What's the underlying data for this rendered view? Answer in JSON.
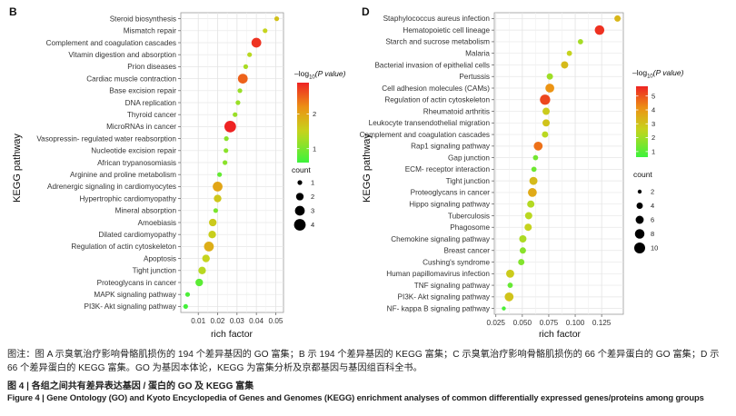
{
  "captions": {
    "note_cn": "图注：图 A 示臭氧治疗影响骨骼肌损伤的 194 个差异基因的 GO 富集；B 示 194 个差异基因的 KEGG 富集；C 示臭氧治疗影响骨骼肌损伤的 66 个差异蛋白的 GO 富集；D 示 66 个差异蛋白的 KEGG 富集。GO 为基因本体论，KEGG 为富集分析及京都基因与基因组百科全书。",
    "title_cn": "图 4 | 各组之间共有差异表达基因 / 蛋白的 GO 及 KEGG 富集",
    "title_en": "Figure 4 | Gene Ontology (GO) and Kyoto Encyclopedia of Genes and Genomes (KEGG) enrichment analyses of common differentially expressed genes/proteins among groups"
  },
  "chart_data": [
    {
      "type": "scatter",
      "panel": "B",
      "xlabel": "rich factor",
      "ylabel": "KEGG pathway",
      "xticks": [
        0.01,
        0.02,
        0.03,
        0.04,
        0.05
      ],
      "xticklabels": [
        "0.01",
        "0.02",
        "0.03",
        "0.04",
        "0.05"
      ],
      "xlim": [
        0.001,
        0.054
      ],
      "grid": true,
      "color_legend": {
        "title_prefix": "–log",
        "title_sub": "10",
        "title_suffix": "(P value)",
        "ticks": [
          1,
          2
        ],
        "range": [
          0.6,
          2.9
        ],
        "low_color": "#3cf23c",
        "high_color": "#ee2323"
      },
      "size_legend": {
        "title": "count",
        "values": [
          1,
          2,
          3,
          4
        ]
      },
      "categories": [
        "Steroid biosynthesis",
        "Mismatch repair",
        "Complement and coagulation cascades",
        "Vitamin digestion and absorption",
        "Prion diseases",
        "Cardiac muscle contraction",
        "Base excision repair",
        "DNA replication",
        "Thyroid cancer",
        "MicroRNAs in cancer",
        "Vasopressin- regulated water reabsorption",
        "Nucleotide excision repair",
        "African trypanosomiasis",
        "Arginine and proline metabolism",
        "Adrenergic signaling in cardiomyocytes",
        "Hypertrophic cardiomyopathy",
        "Mineral absorption",
        "Amoebiasis",
        "Dilated cardiomyopathy",
        "Regulation of actin cytoskeleton",
        "Apoptosis",
        "Tight junction",
        "Proteoglycans in cancer",
        "MAPK signaling pathway",
        "PI3K- Akt signaling pathway"
      ],
      "points": [
        {
          "x": 0.0505,
          "count": 1,
          "neglogp": 1.7
        },
        {
          "x": 0.0445,
          "count": 1,
          "neglogp": 1.5
        },
        {
          "x": 0.04,
          "count": 3,
          "neglogp": 2.8
        },
        {
          "x": 0.0365,
          "count": 1,
          "neglogp": 1.4
        },
        {
          "x": 0.0345,
          "count": 1,
          "neglogp": 1.3
        },
        {
          "x": 0.033,
          "count": 3,
          "neglogp": 2.5
        },
        {
          "x": 0.0315,
          "count": 1,
          "neglogp": 1.2
        },
        {
          "x": 0.0305,
          "count": 1,
          "neglogp": 1.2
        },
        {
          "x": 0.029,
          "count": 1,
          "neglogp": 1.2
        },
        {
          "x": 0.0265,
          "count": 4,
          "neglogp": 2.9
        },
        {
          "x": 0.0245,
          "count": 1,
          "neglogp": 1.1
        },
        {
          "x": 0.0243,
          "count": 1,
          "neglogp": 1.1
        },
        {
          "x": 0.0238,
          "count": 1,
          "neglogp": 1.1
        },
        {
          "x": 0.021,
          "count": 1,
          "neglogp": 0.85
        },
        {
          "x": 0.02,
          "count": 3,
          "neglogp": 2.0
        },
        {
          "x": 0.02,
          "count": 2,
          "neglogp": 1.65
        },
        {
          "x": 0.019,
          "count": 1,
          "neglogp": 1.0
        },
        {
          "x": 0.0175,
          "count": 2,
          "neglogp": 1.6
        },
        {
          "x": 0.0172,
          "count": 2,
          "neglogp": 1.55
        },
        {
          "x": 0.0155,
          "count": 3,
          "neglogp": 1.9
        },
        {
          "x": 0.014,
          "count": 2,
          "neglogp": 1.5
        },
        {
          "x": 0.012,
          "count": 2,
          "neglogp": 1.4
        },
        {
          "x": 0.0105,
          "count": 2,
          "neglogp": 0.8
        },
        {
          "x": 0.0045,
          "count": 1,
          "neglogp": 0.7
        },
        {
          "x": 0.0035,
          "count": 1,
          "neglogp": 0.65
        }
      ]
    },
    {
      "type": "scatter",
      "panel": "D",
      "xlabel": "rich factor",
      "ylabel": "KEGG pathway",
      "xticks": [
        0.025,
        0.05,
        0.075,
        0.1,
        0.125
      ],
      "xticklabels": [
        "0.025",
        "0.050",
        "0.075",
        "0.100",
        "0.125"
      ],
      "xlim": [
        0.0235,
        0.1455
      ],
      "grid": true,
      "color_legend": {
        "title_prefix": "–log",
        "title_sub": "10",
        "title_suffix": "(P value)",
        "ticks": [
          1,
          2,
          3,
          4,
          5
        ],
        "range": [
          0.6,
          5.7
        ],
        "low_color": "#3cf23c",
        "high_color": "#ee2323"
      },
      "size_legend": {
        "title": "count",
        "values": [
          2,
          4,
          6,
          8,
          10
        ]
      },
      "categories": [
        "Staphylococcus aureus infection",
        "Hematopoietic cell lineage",
        "Starch and sucrose metabolism",
        "Malaria",
        "Bacterial invasion of epithelial cells",
        "Pertussis",
        "Cell adhesion molecules (CAMs)",
        "Regulation of actin cytoskeleton",
        "Rheumatoid arthritis",
        "Leukocyte transendothelial migration",
        "Complement and coagulation cascades",
        "Rap1 signaling pathway",
        "Gap junction",
        "ECM- receptor interaction",
        "Tight junction",
        "Proteoglycans in cancer",
        "Hippo signaling pathway",
        "Tuberculosis",
        "Phagosome",
        "Chemokine signaling pathway",
        "Breast cancer",
        "Cushing's syndrome",
        "Human papillomavirus infection",
        "TNF signaling pathway",
        "PI3K- Akt signaling pathway",
        "NF- kappa B signaling pathway"
      ],
      "points": [
        {
          "x": 0.14,
          "count": 4,
          "neglogp": 3.3
        },
        {
          "x": 0.123,
          "count": 8,
          "neglogp": 5.5
        },
        {
          "x": 0.105,
          "count": 3,
          "neglogp": 2.1
        },
        {
          "x": 0.0945,
          "count": 3,
          "neglogp": 2.6
        },
        {
          "x": 0.09,
          "count": 5,
          "neglogp": 3.2
        },
        {
          "x": 0.076,
          "count": 4,
          "neglogp": 2.0
        },
        {
          "x": 0.076,
          "count": 7,
          "neglogp": 4.1
        },
        {
          "x": 0.0715,
          "count": 9,
          "neglogp": 5.2
        },
        {
          "x": 0.0725,
          "count": 5,
          "neglogp": 2.8
        },
        {
          "x": 0.0725,
          "count": 5,
          "neglogp": 3.0
        },
        {
          "x": 0.0715,
          "count": 4,
          "neglogp": 2.4
        },
        {
          "x": 0.065,
          "count": 7,
          "neglogp": 4.6
        },
        {
          "x": 0.0625,
          "count": 3,
          "neglogp": 1.4
        },
        {
          "x": 0.061,
          "count": 3,
          "neglogp": 1.3
        },
        {
          "x": 0.0605,
          "count": 6,
          "neglogp": 3.2
        },
        {
          "x": 0.0595,
          "count": 7,
          "neglogp": 3.6
        },
        {
          "x": 0.058,
          "count": 5,
          "neglogp": 2.3
        },
        {
          "x": 0.056,
          "count": 5,
          "neglogp": 2.4
        },
        {
          "x": 0.0555,
          "count": 5,
          "neglogp": 2.6
        },
        {
          "x": 0.0505,
          "count": 5,
          "neglogp": 2.2
        },
        {
          "x": 0.0505,
          "count": 4,
          "neglogp": 1.7
        },
        {
          "x": 0.049,
          "count": 4,
          "neglogp": 1.6
        },
        {
          "x": 0.0385,
          "count": 6,
          "neglogp": 2.8
        },
        {
          "x": 0.0385,
          "count": 3,
          "neglogp": 1.2
        },
        {
          "x": 0.0375,
          "count": 7,
          "neglogp": 3.0
        },
        {
          "x": 0.0325,
          "count": 2,
          "neglogp": 0.8
        }
      ]
    }
  ]
}
